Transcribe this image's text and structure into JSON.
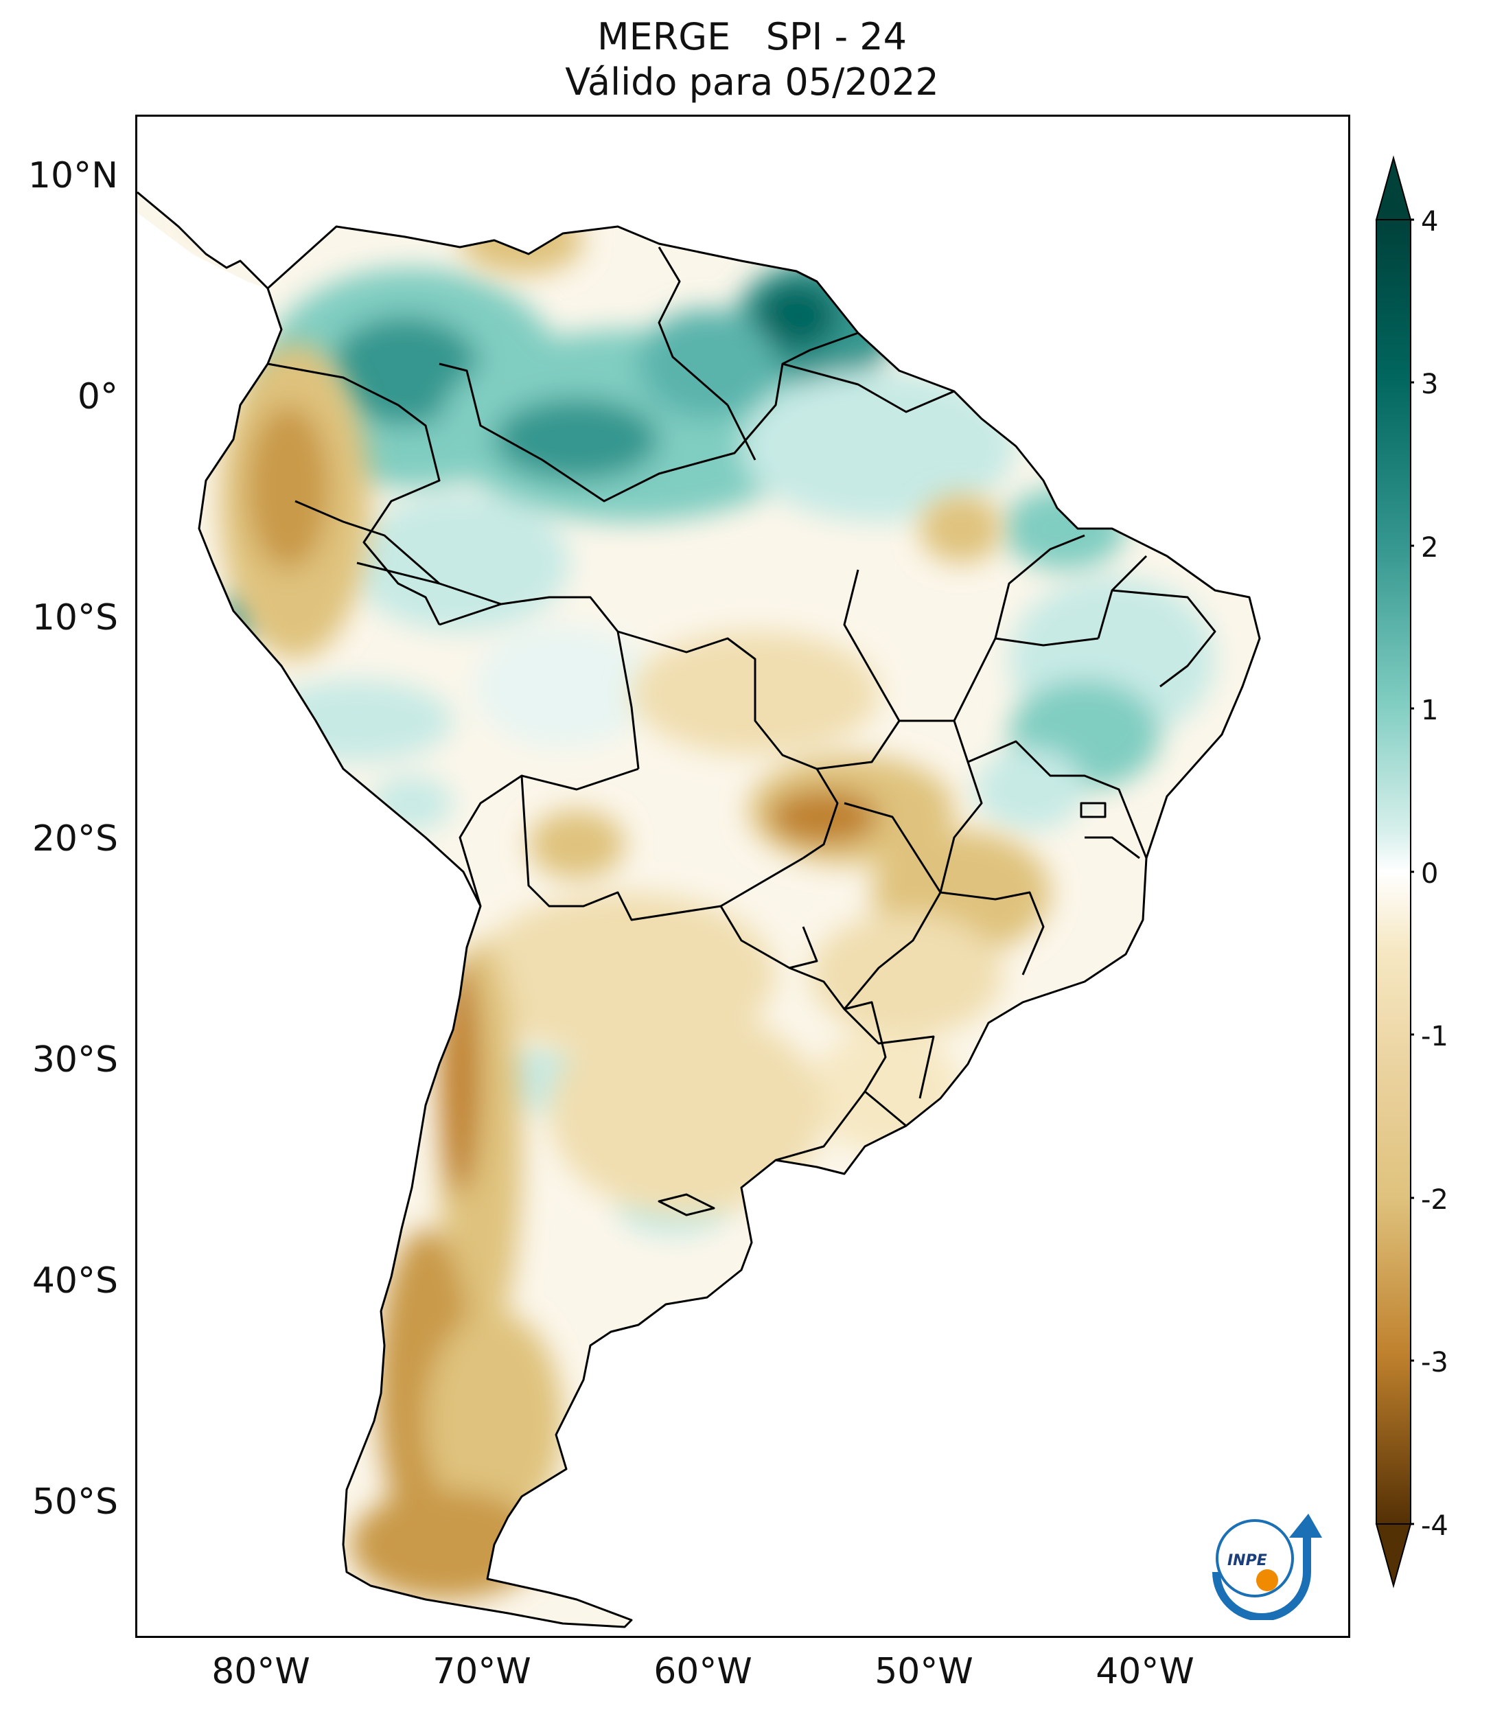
{
  "title": {
    "line1": "MERGE   SPI - 24",
    "line2": "Válido para 05/2022"
  },
  "map": {
    "region": "South America",
    "extent_lon": [
      -85,
      -30
    ],
    "extent_lat": [
      -56,
      13
    ],
    "lat_labels": [
      "10°N",
      "0°",
      "10°S",
      "20°S",
      "30°S",
      "40°S",
      "50°S"
    ],
    "lon_labels": [
      "80°W",
      "70°W",
      "60°W",
      "50°W",
      "40°W"
    ],
    "colors": {
      "very_wet": "#00413a",
      "wet": "#35978f",
      "slightly_wet": "#80cdc1",
      "neutral": "#ffffff",
      "slightly_dry": "#dfc27d",
      "dry": "#bf812d",
      "very_dry": "#543005"
    }
  },
  "colorbar": {
    "ticks": [
      "4",
      "3",
      "2",
      "1",
      "0",
      "-1",
      "-2",
      "-3",
      "-4"
    ],
    "min": -4,
    "max": 4,
    "extend": "both"
  },
  "logo": {
    "text": "INPE"
  }
}
